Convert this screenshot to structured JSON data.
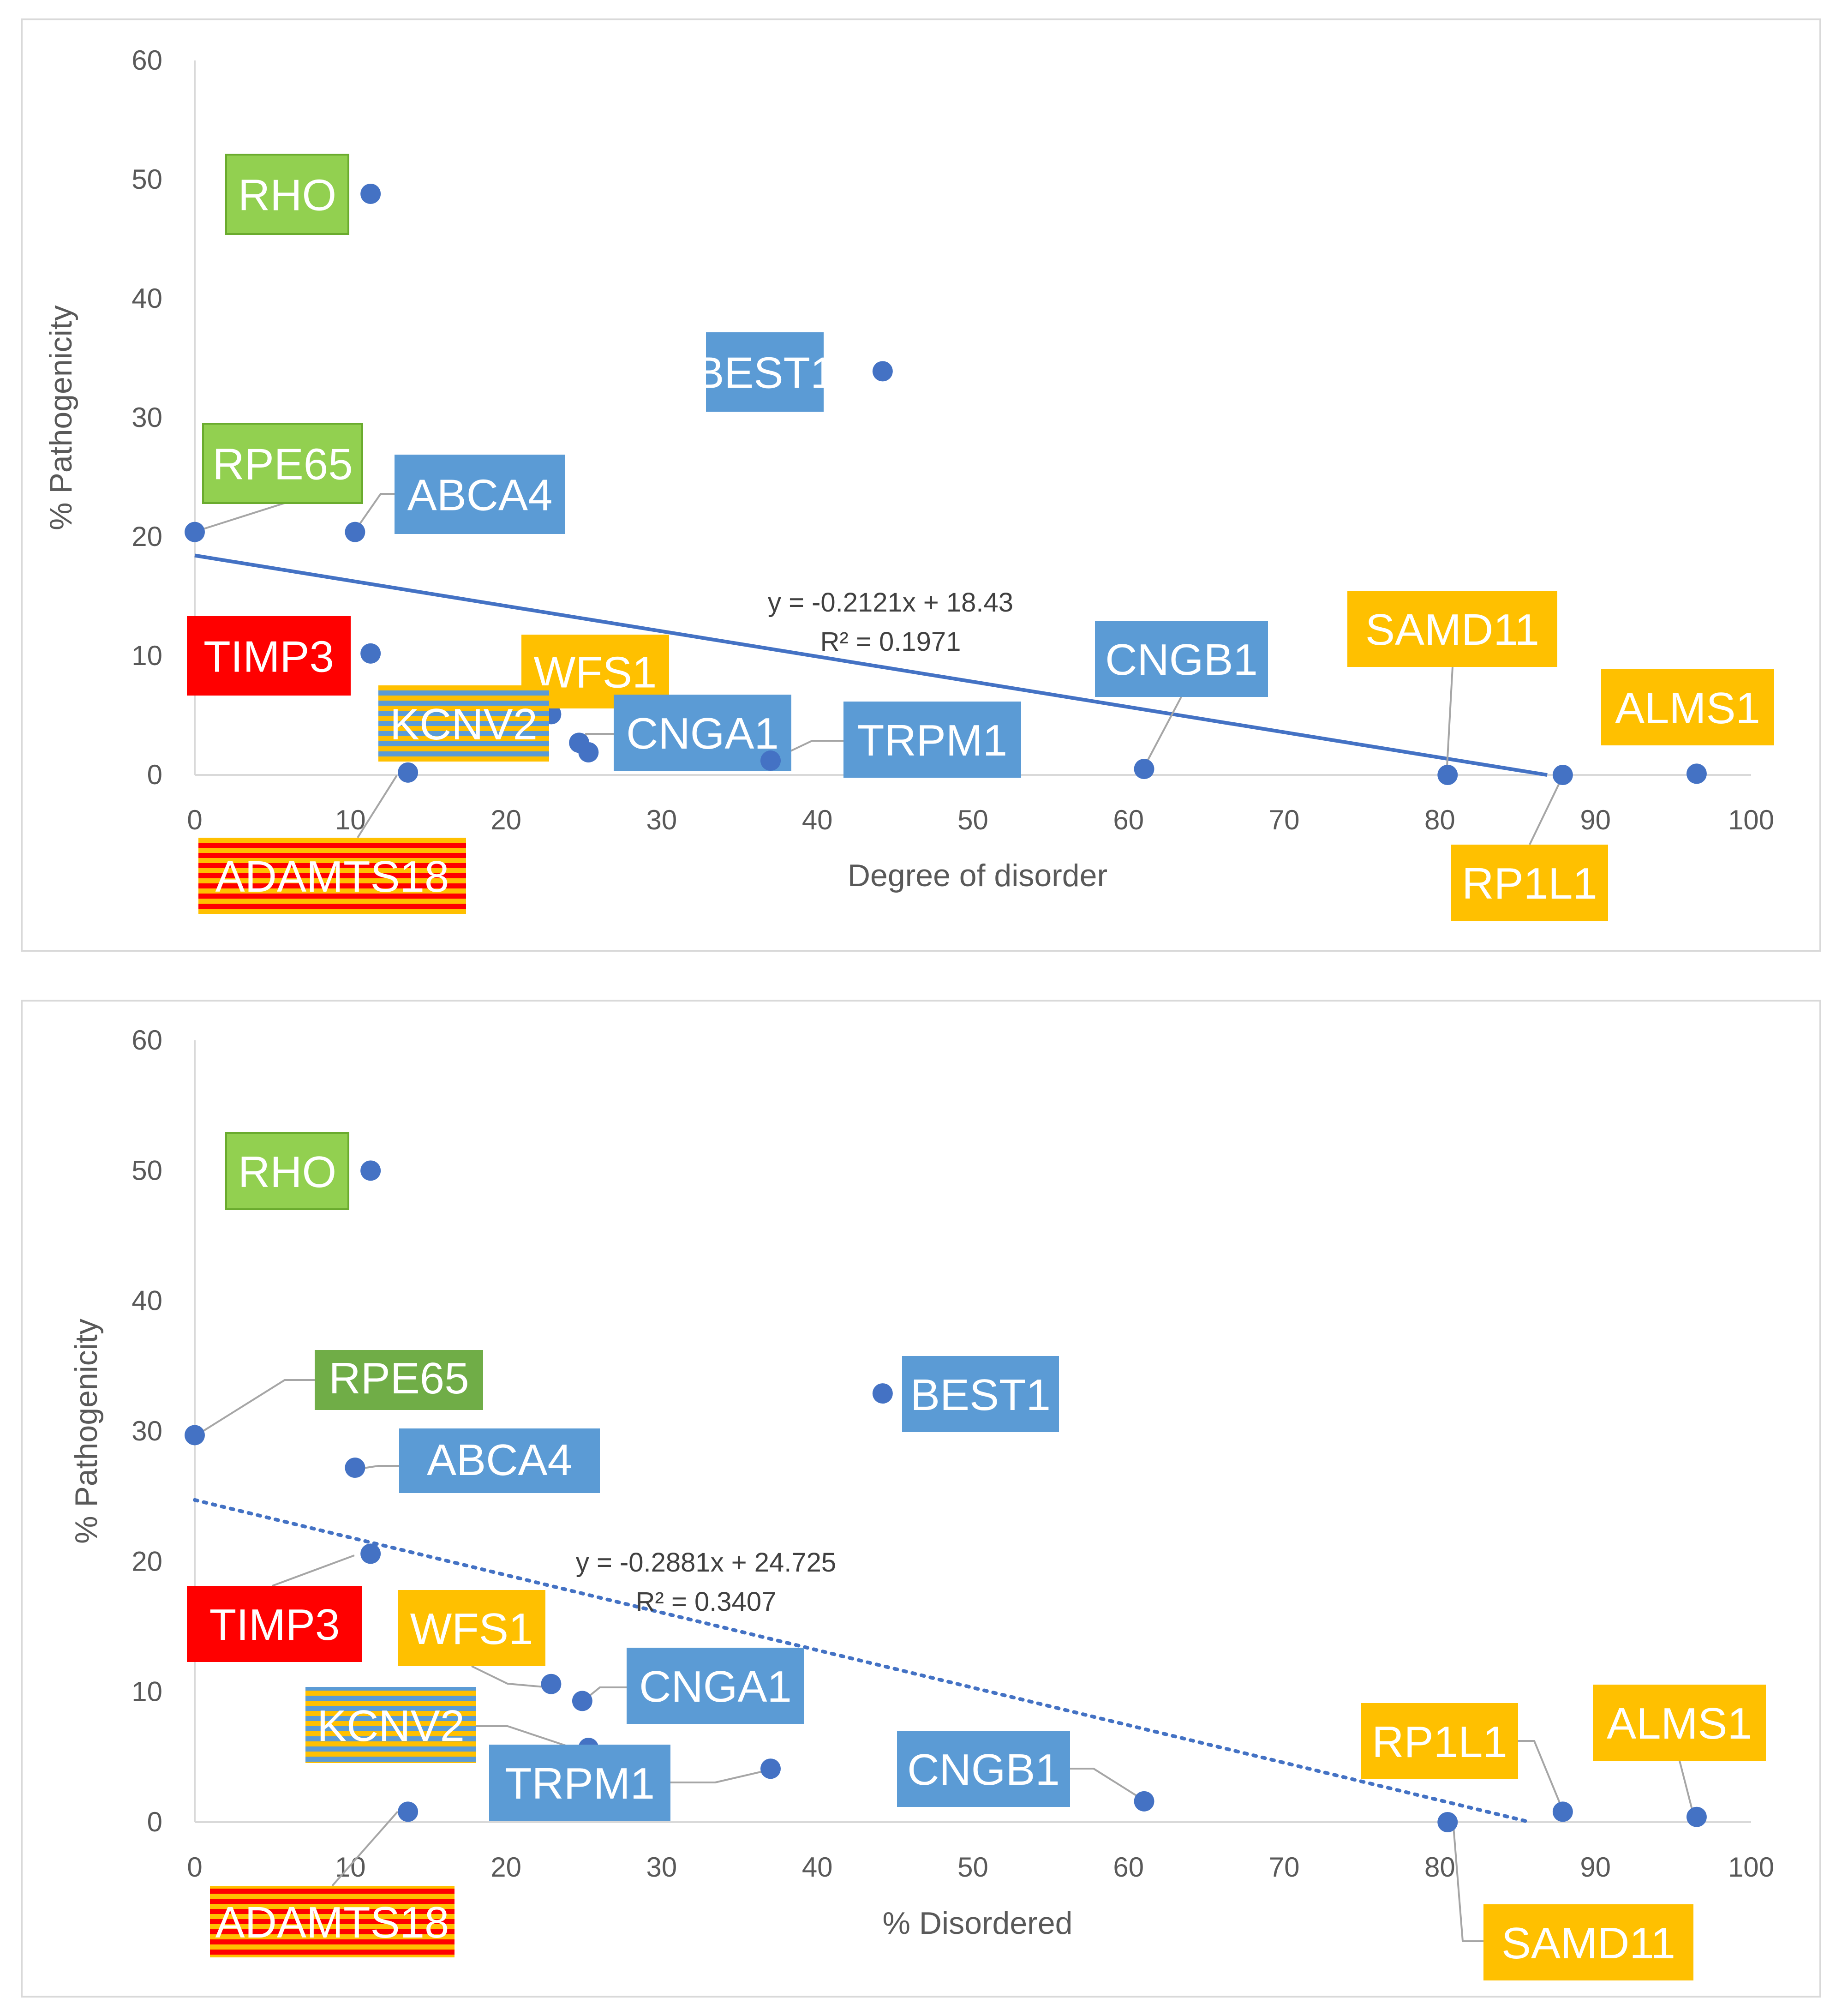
{
  "colors": {
    "point": "#4472c4",
    "trend": "#4472c4",
    "axis": "#d9d9d9",
    "text": "#595959",
    "leader": "#a6a6a6",
    "green_light": "#92d050",
    "green_dark": "#70ad47",
    "blue": "#5b9bd5",
    "orange": "#ffc000",
    "red": "#ff0000"
  },
  "chart_data": [
    {
      "type": "scatter",
      "title": "",
      "xlabel": "Degree of disorder",
      "ylabel": "% Pathogenicity",
      "xlim": [
        0,
        100
      ],
      "ylim": [
        0,
        60
      ],
      "x_ticks": [
        0,
        10,
        20,
        30,
        40,
        50,
        60,
        70,
        80,
        90,
        100
      ],
      "y_ticks": [
        0,
        10,
        20,
        30,
        40,
        50,
        60
      ],
      "trendline": {
        "style": "solid",
        "slope": -0.2121,
        "intercept": 18.43,
        "x_range": [
          0,
          86.9
        ]
      },
      "equation": "y = -0.2121x + 18.43",
      "r_squared": "R² = 0.1971",
      "points": [
        {
          "gene": "RHO",
          "x": 11.3,
          "y": 48.8,
          "color": "green_light"
        },
        {
          "gene": "BEST1",
          "x": 44.2,
          "y": 33.9,
          "color": "blue"
        },
        {
          "gene": "RPE65",
          "x": 0.0,
          "y": 20.4,
          "color": "green_light"
        },
        {
          "gene": "ABCA4",
          "x": 10.3,
          "y": 20.4,
          "color": "blue"
        },
        {
          "gene": "TIMP3",
          "x": 11.3,
          "y": 10.2,
          "color": "red"
        },
        {
          "gene": "WFS1",
          "x": 22.9,
          "y": 5.1,
          "color": "orange"
        },
        {
          "gene": "KCNV2",
          "x": 24.7,
          "y": 2.7,
          "color": "blue_orange"
        },
        {
          "gene": "CNGA1",
          "x": 25.3,
          "y": 1.9,
          "color": "blue"
        },
        {
          "gene": "TRPM1",
          "x": 37.0,
          "y": 1.2,
          "color": "blue"
        },
        {
          "gene": "ADAMTS18",
          "x": 13.7,
          "y": 0.2,
          "color": "red_orange"
        },
        {
          "gene": "CNGB1",
          "x": 61.0,
          "y": 0.5,
          "color": "blue"
        },
        {
          "gene": "SAMD11",
          "x": 80.5,
          "y": 0.0,
          "color": "orange"
        },
        {
          "gene": "RP1L1",
          "x": 87.9,
          "y": 0.0,
          "color": "orange"
        },
        {
          "gene": "ALMS1",
          "x": 96.5,
          "y": 0.1,
          "color": "orange"
        }
      ]
    },
    {
      "type": "scatter",
      "title": "",
      "xlabel": "% Disordered",
      "ylabel": "% Pathogenicity",
      "xlim": [
        0,
        100
      ],
      "ylim": [
        0,
        60
      ],
      "x_ticks": [
        0,
        10,
        20,
        30,
        40,
        50,
        60,
        70,
        80,
        90,
        100
      ],
      "y_ticks": [
        0,
        10,
        20,
        30,
        40,
        50,
        60
      ],
      "trendline": {
        "style": "dotted",
        "slope": -0.2881,
        "intercept": 24.725,
        "x_range": [
          0,
          85.8
        ]
      },
      "equation": "y = -0.2881x + 24.725",
      "r_squared": "R² = 0.3407",
      "points": [
        {
          "gene": "RHO",
          "x": 11.3,
          "y": 50.0,
          "color": "green_light"
        },
        {
          "gene": "RPE65",
          "x": 0.0,
          "y": 29.7,
          "color": "green_dark"
        },
        {
          "gene": "ABCA4",
          "x": 10.3,
          "y": 27.2,
          "color": "blue"
        },
        {
          "gene": "BEST1",
          "x": 44.2,
          "y": 32.9,
          "color": "blue"
        },
        {
          "gene": "TIMP3",
          "x": 11.3,
          "y": 20.6,
          "color": "red"
        },
        {
          "gene": "WFS1",
          "x": 22.9,
          "y": 10.6,
          "color": "orange"
        },
        {
          "gene": "CNGA1",
          "x": 24.9,
          "y": 9.3,
          "color": "blue"
        },
        {
          "gene": "KCNV2",
          "x": 25.3,
          "y": 5.7,
          "color": "blue_orange"
        },
        {
          "gene": "TRPM1",
          "x": 37.0,
          "y": 4.1,
          "color": "blue"
        },
        {
          "gene": "ADAMTS18",
          "x": 13.7,
          "y": 0.8,
          "color": "red_orange"
        },
        {
          "gene": "CNGB1",
          "x": 61.0,
          "y": 1.6,
          "color": "blue"
        },
        {
          "gene": "SAMD11",
          "x": 80.5,
          "y": 0.0,
          "color": "orange"
        },
        {
          "gene": "RP1L1",
          "x": 87.9,
          "y": 0.8,
          "color": "orange"
        },
        {
          "gene": "ALMS1",
          "x": 96.5,
          "y": 0.4,
          "color": "orange"
        }
      ]
    }
  ]
}
